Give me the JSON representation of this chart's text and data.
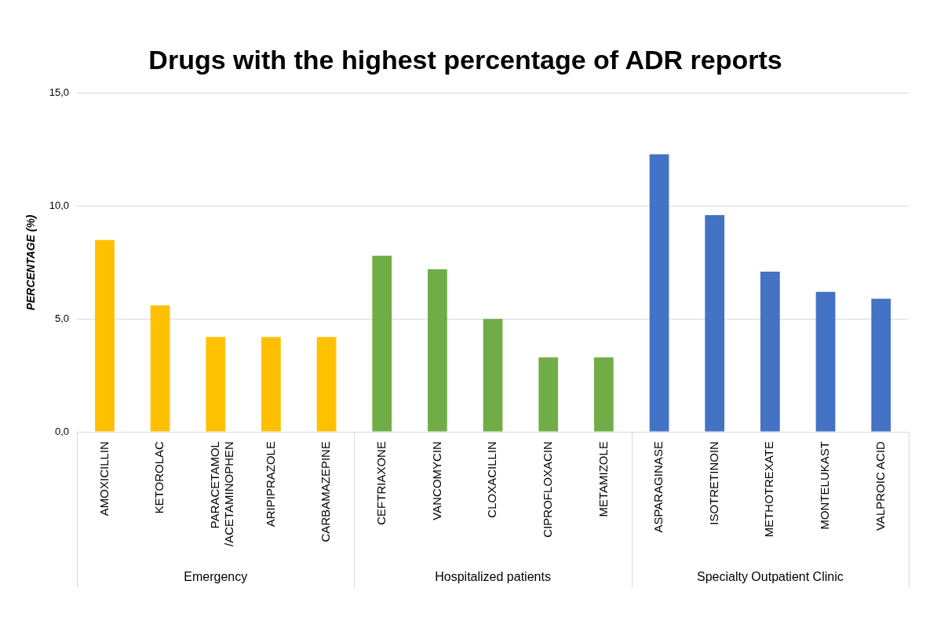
{
  "chart_data": {
    "type": "bar",
    "title": "Drugs with the highest percentage of ADR reports",
    "ylabel": "PERCENTAGE (%)",
    "categories": [
      "AMOXICILLIN",
      "KETOROLAC",
      "PARACETAMOL /ACETAMINOPHEN",
      "ARIPIPRAZOLE",
      "CARBAMAZEPINE",
      "CEFTRIAXONE",
      "VANCOMYCIN",
      "CLOXACILLIN",
      "CIPROFLOXACIN",
      "METAMIZOLE",
      "ASPARAGINASE",
      "ISOTRETINOIN",
      "METHOTREXATE",
      "MONTELUKAST",
      "VALPROIC ACID"
    ],
    "values": [
      8.5,
      5.6,
      4.2,
      4.2,
      4.2,
      7.8,
      7.2,
      5.0,
      3.3,
      3.3,
      12.3,
      9.6,
      7.1,
      6.2,
      5.9
    ],
    "colors": [
      "#ffc000",
      "#ffc000",
      "#ffc000",
      "#ffc000",
      "#ffc000",
      "#70ad47",
      "#70ad47",
      "#70ad47",
      "#70ad47",
      "#70ad47",
      "#4472c4",
      "#4472c4",
      "#4472c4",
      "#4472c4",
      "#4472c4"
    ],
    "annotations": [
      "Emergency",
      "Hospitalized patients",
      "Specialty Outpatient Clinic"
    ],
    "ylim": [
      0,
      15
    ],
    "yticks": [
      {
        "value": 0,
        "label": "0,0"
      },
      {
        "value": 5,
        "label": "5,0"
      },
      {
        "value": 10,
        "label": "10,0"
      },
      {
        "value": 15,
        "label": "15,0"
      }
    ],
    "grid": "y",
    "legend": false
  }
}
